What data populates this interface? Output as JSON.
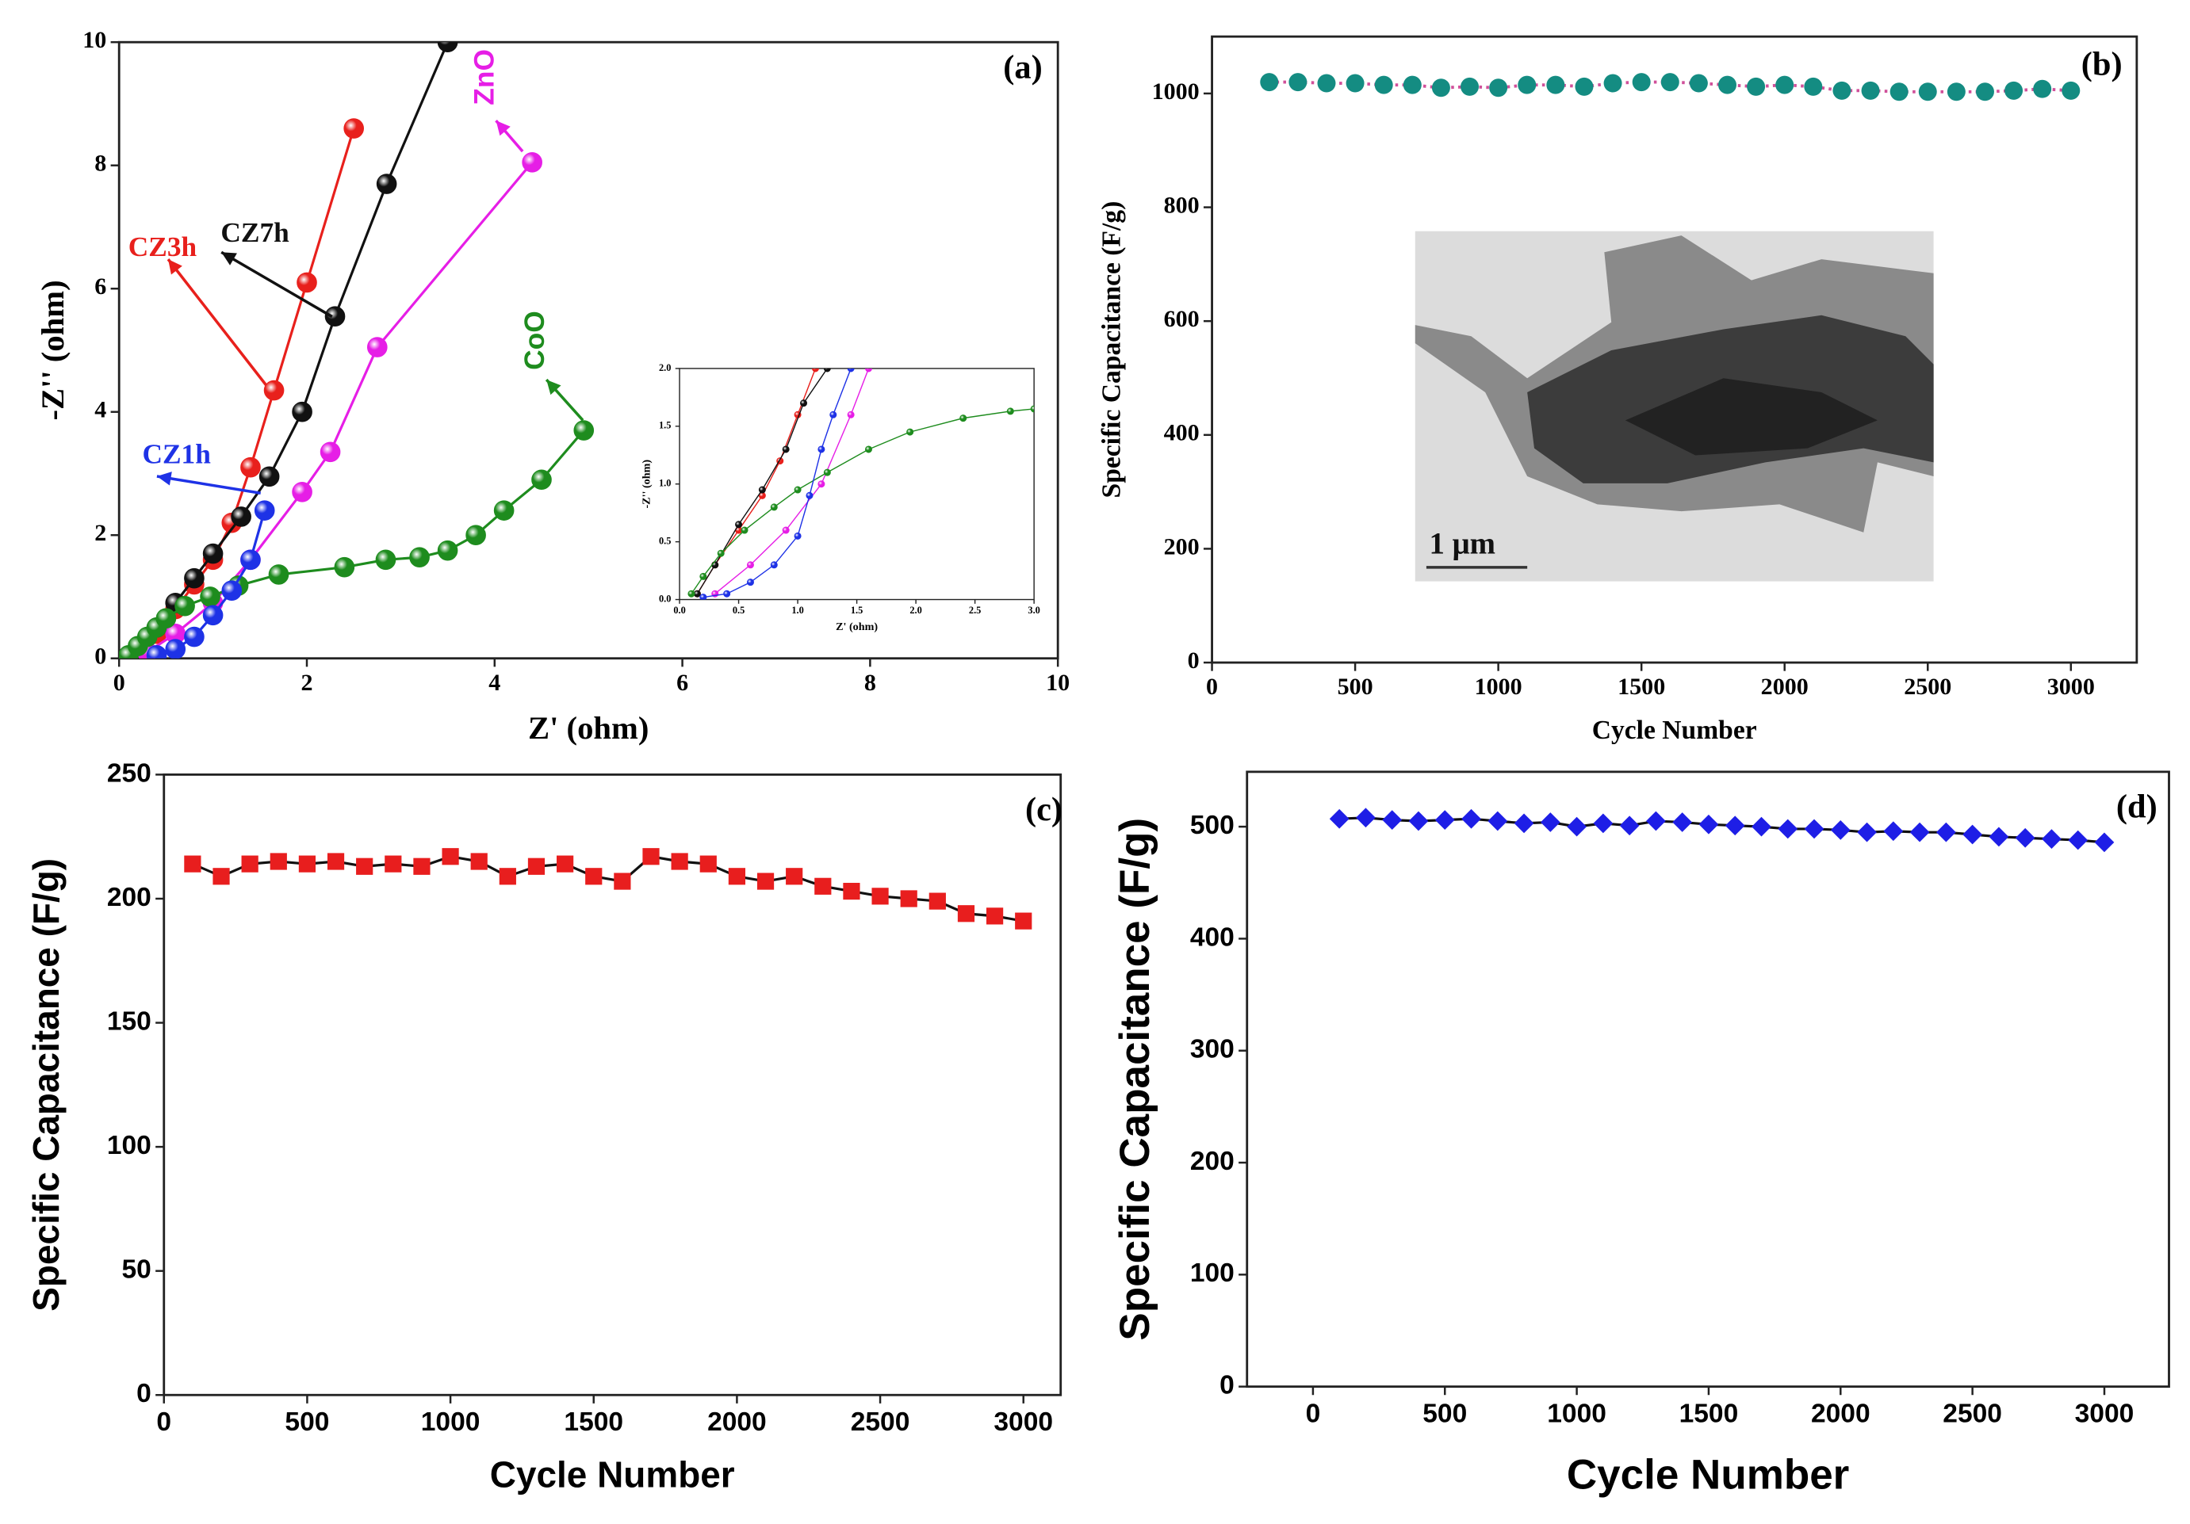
{
  "chart_data": [
    {
      "type": "line",
      "title": "(a)",
      "xlabel": "Z' (ohm)",
      "ylabel": "-Z'' (ohm)",
      "xlim": [
        0,
        10
      ],
      "ylim": [
        0,
        10
      ],
      "xticks": [
        0,
        2,
        4,
        6,
        8,
        10
      ],
      "yticks": [
        0,
        2,
        4,
        6,
        8,
        10
      ],
      "marker": "sphere",
      "series": [
        {
          "name": "CZ3h",
          "color": "#e8201c",
          "x": [
            0.2,
            0.4,
            0.6,
            0.8,
            1.0,
            1.2,
            1.4,
            1.65,
            2.0,
            2.5
          ],
          "values": [
            0.1,
            0.4,
            0.8,
            1.2,
            1.6,
            2.2,
            3.1,
            4.35,
            6.1,
            8.6
          ]
        },
        {
          "name": "CZ7h",
          "color": "#111111",
          "x": [
            0.2,
            0.4,
            0.6,
            0.8,
            1.0,
            1.3,
            1.6,
            1.95,
            2.3,
            2.85,
            3.5
          ],
          "values": [
            0.1,
            0.5,
            0.9,
            1.3,
            1.7,
            2.3,
            2.95,
            4.0,
            5.55,
            7.7,
            10
          ]
        },
        {
          "name": "ZnO",
          "color": "#e61ee6",
          "x": [
            0.3,
            0.6,
            1.0,
            1.4,
            1.95,
            2.25,
            2.75,
            4.4
          ],
          "values": [
            0.1,
            0.4,
            0.9,
            1.6,
            2.7,
            3.35,
            5.05,
            8.05
          ]
        },
        {
          "name": "CoO",
          "color": "#1e8c1e",
          "x": [
            0.1,
            0.2,
            0.3,
            0.4,
            0.5,
            0.7,
            0.97,
            1.27,
            1.7,
            2.4,
            2.84,
            3.2,
            3.5,
            3.8,
            4.1,
            4.5,
            4.95
          ],
          "values": [
            0.05,
            0.2,
            0.35,
            0.5,
            0.65,
            0.85,
            1.0,
            1.18,
            1.36,
            1.48,
            1.6,
            1.64,
            1.75,
            2.0,
            2.4,
            2.9,
            3.7
          ]
        },
        {
          "name": "CZ1h",
          "color": "#1e32e6",
          "x": [
            0.4,
            0.6,
            0.8,
            1.0,
            1.2,
            1.4,
            1.55
          ],
          "values": [
            0.05,
            0.15,
            0.35,
            0.7,
            1.1,
            1.6,
            2.4
          ]
        }
      ]
    },
    {
      "type": "line",
      "xlabel": "Z' (ohm)",
      "ylabel": "-Z'' (ohm)",
      "xlim": [
        0,
        3
      ],
      "ylim": [
        0,
        2
      ],
      "xticks": [
        {
          "value": 0,
          "label": "0.0"
        },
        {
          "value": 0.5,
          "label": "0.5"
        },
        {
          "value": 1,
          "label": "1.0"
        },
        {
          "value": 1.5,
          "label": "1.5"
        },
        {
          "value": 2,
          "label": "2.0"
        },
        {
          "value": 2.5,
          "label": "2.5"
        },
        {
          "value": 3,
          "label": "3.0"
        }
      ],
      "yticks": [
        {
          "value": 0,
          "label": "0.0"
        },
        {
          "value": 0.5,
          "label": "0.5"
        },
        {
          "value": 1,
          "label": "1.0"
        },
        {
          "value": 1.5,
          "label": "1.5"
        },
        {
          "value": 2,
          "label": "2.0"
        }
      ],
      "marker": "sphere",
      "series": [
        {
          "color": "#e8201c",
          "x": [
            0.15,
            0.3,
            0.5,
            0.7,
            0.85,
            1.0,
            1.15
          ],
          "values": [
            0.05,
            0.3,
            0.6,
            0.9,
            1.2,
            1.6,
            2.0
          ]
        },
        {
          "color": "#111111",
          "x": [
            0.15,
            0.3,
            0.5,
            0.7,
            0.9,
            1.05,
            1.25
          ],
          "values": [
            0.05,
            0.3,
            0.65,
            0.95,
            1.3,
            1.7,
            2.0
          ]
        },
        {
          "color": "#e61ee6",
          "x": [
            0.3,
            0.6,
            0.9,
            1.2,
            1.45,
            1.6
          ],
          "values": [
            0.05,
            0.3,
            0.6,
            1.0,
            1.6,
            2.0
          ]
        },
        {
          "color": "#1e8c1e",
          "x": [
            0.1,
            0.2,
            0.35,
            0.55,
            0.8,
            1.0,
            1.25,
            1.6,
            1.95,
            2.4,
            2.8,
            3.0
          ],
          "values": [
            0.05,
            0.2,
            0.4,
            0.6,
            0.8,
            0.95,
            1.1,
            1.3,
            1.45,
            1.57,
            1.63,
            1.65
          ]
        },
        {
          "color": "#1e32e6",
          "x": [
            0.2,
            0.4,
            0.6,
            0.8,
            1.0,
            1.1,
            1.2,
            1.3,
            1.45
          ],
          "values": [
            0.02,
            0.05,
            0.15,
            0.3,
            0.55,
            0.9,
            1.3,
            1.6,
            2.0
          ]
        }
      ]
    },
    {
      "type": "line",
      "title": "(b)",
      "xlabel": "Cycle Number",
      "ylabel": "Specific Capacitance (F/g)",
      "xlim": [
        0,
        3230
      ],
      "ylim": [
        0,
        1100
      ],
      "xticks": [
        0,
        500,
        1000,
        1500,
        2000,
        2500,
        3000
      ],
      "yticks": [
        0,
        200,
        400,
        600,
        800,
        1000
      ],
      "marker": "circle",
      "line_style": "dotted",
      "image_label": "1 μm",
      "x": [
        200,
        300,
        400,
        500,
        600,
        700,
        800,
        900,
        1000,
        1100,
        1200,
        1300,
        1400,
        1500,
        1600,
        1700,
        1800,
        1900,
        2000,
        2100,
        2200,
        2300,
        2400,
        2500,
        2600,
        2700,
        2800,
        2900,
        3000
      ],
      "series": [
        {
          "color": "#148c82",
          "line_color": "#d0509a",
          "values": [
            1020,
            1020,
            1018,
            1018,
            1015,
            1015,
            1010,
            1012,
            1010,
            1015,
            1015,
            1012,
            1018,
            1020,
            1020,
            1018,
            1015,
            1012,
            1015,
            1012,
            1005,
            1005,
            1003,
            1003,
            1003,
            1003,
            1005,
            1008,
            1005
          ]
        }
      ]
    },
    {
      "type": "line",
      "title": "(c)",
      "xlabel": "Cycle Number",
      "ylabel": "Specific Capacitance (F/g)",
      "xlim": [
        0,
        3130
      ],
      "ylim": [
        0,
        250
      ],
      "xticks": [
        0,
        500,
        1000,
        1500,
        2000,
        2500,
        3000
      ],
      "yticks": [
        0,
        50,
        100,
        150,
        200,
        250
      ],
      "marker": "square",
      "x": [
        100,
        200,
        300,
        400,
        500,
        600,
        700,
        800,
        900,
        1000,
        1100,
        1200,
        1300,
        1400,
        1500,
        1600,
        1700,
        1800,
        1900,
        2000,
        2100,
        2200,
        2300,
        2400,
        2500,
        2600,
        2700,
        2800,
        2900,
        3000
      ],
      "series": [
        {
          "color": "#e81e1e",
          "line_color": "#111111",
          "values": [
            214,
            209,
            214,
            215,
            214,
            215,
            213,
            214,
            213,
            217,
            215,
            209,
            213,
            214,
            209,
            207,
            217,
            215,
            214,
            209,
            207,
            209,
            205,
            203,
            201,
            200,
            199,
            194,
            193,
            191
          ]
        }
      ]
    },
    {
      "type": "line",
      "title": "(d)",
      "xlabel": "Cycle Number",
      "ylabel": "Specific Capacitance (F/g)",
      "xlim": [
        -250,
        3245
      ],
      "ylim": [
        0,
        549
      ],
      "xticks": [
        0,
        500,
        1000,
        1500,
        2000,
        2500,
        3000
      ],
      "yticks": [
        0,
        100,
        200,
        300,
        400,
        500
      ],
      "marker": "diamond",
      "x": [
        100,
        200,
        300,
        400,
        500,
        600,
        700,
        800,
        900,
        1000,
        1100,
        1200,
        1300,
        1400,
        1500,
        1600,
        1700,
        1800,
        1900,
        2000,
        2100,
        2200,
        2300,
        2400,
        2500,
        2600,
        2700,
        2800,
        2900,
        3000
      ],
      "series": [
        {
          "color": "#1e1ee6",
          "line_color": "#111111",
          "values": [
            507,
            508,
            506,
            505,
            506,
            507,
            505,
            503,
            504,
            500,
            503,
            501,
            505,
            504,
            502,
            501,
            500,
            498,
            498,
            497,
            495,
            496,
            495,
            495,
            493,
            491,
            490,
            489,
            488,
            486
          ]
        }
      ]
    }
  ]
}
